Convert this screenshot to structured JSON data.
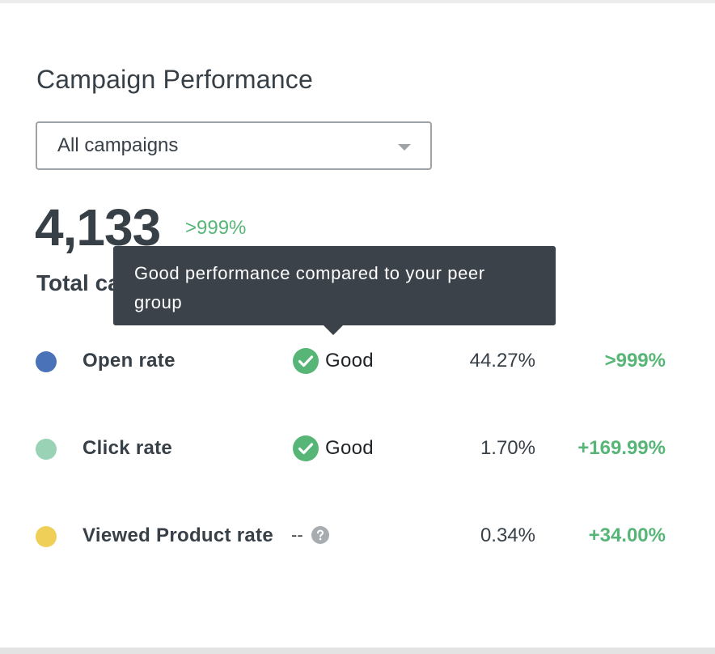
{
  "card": {
    "title": "Campaign Performance",
    "filter": {
      "selected": "All campaigns"
    },
    "total": {
      "value": "4,133",
      "change": ">999%",
      "label": "Total ca"
    },
    "tooltip": {
      "text": "Good performance compared to your peer group"
    },
    "metrics": [
      {
        "name": "Open rate",
        "dot_color": "#4a72b8",
        "status": "Good",
        "rate": "44.27%",
        "change": ">999%"
      },
      {
        "name": "Click rate",
        "dot_color": "#9ad2b6",
        "status": "Good",
        "rate": "1.70%",
        "change": "+169.99%"
      },
      {
        "name": "Viewed Product rate",
        "dot_color": "#efcf57",
        "status": "--",
        "status_icon": "question-icon",
        "rate": "0.34%",
        "change": "+34.00%"
      }
    ]
  },
  "colors": {
    "positive": "#57b677",
    "text": "#373f47",
    "tooltip_bg": "#3b4249"
  }
}
